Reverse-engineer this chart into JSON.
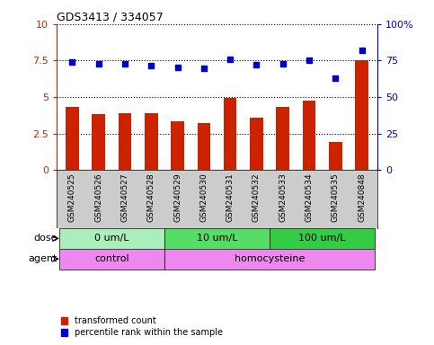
{
  "title": "GDS3413 / 334057",
  "samples": [
    "GSM240525",
    "GSM240526",
    "GSM240527",
    "GSM240528",
    "GSM240529",
    "GSM240530",
    "GSM240531",
    "GSM240532",
    "GSM240533",
    "GSM240534",
    "GSM240535",
    "GSM240848"
  ],
  "transformed_count": [
    4.3,
    3.8,
    3.9,
    3.9,
    3.35,
    3.2,
    4.95,
    3.6,
    4.3,
    4.75,
    1.95,
    7.5
  ],
  "percentile_rank": [
    74,
    73,
    73,
    71.5,
    70.5,
    70,
    76,
    72.5,
    73,
    75.5,
    63,
    82
  ],
  "bar_color": "#cc2200",
  "dot_color": "#0000cc",
  "ylim_left": [
    0,
    10
  ],
  "ylim_right": [
    0,
    100
  ],
  "yticks_left": [
    0,
    2.5,
    5,
    7.5,
    10
  ],
  "yticks_right": [
    0,
    25,
    50,
    75,
    100
  ],
  "ytick_labels_left": [
    "0",
    "2.5",
    "5",
    "7.5",
    "10"
  ],
  "ytick_labels_right": [
    "0",
    "25",
    "50",
    "75",
    "100%"
  ],
  "dose_groups": [
    {
      "label": "0 um/L",
      "start": 0,
      "end": 4,
      "color": "#aaeebb"
    },
    {
      "label": "10 um/L",
      "start": 4,
      "end": 8,
      "color": "#55dd66"
    },
    {
      "label": "100 um/L",
      "start": 8,
      "end": 12,
      "color": "#33cc44"
    }
  ],
  "agent_control": {
    "label": "control",
    "start": 0,
    "end": 4,
    "color": "#ee88ee"
  },
  "agent_homo": {
    "label": "homocysteine",
    "start": 4,
    "end": 12,
    "color": "#ee88ee"
  },
  "legend_items": [
    {
      "label": "transformed count",
      "color": "#cc2200"
    },
    {
      "label": "percentile rank within the sample",
      "color": "#0000cc"
    }
  ],
  "dose_label": "dose",
  "agent_label": "agent",
  "background_color": "#ffffff",
  "tick_area_color": "#cccccc"
}
